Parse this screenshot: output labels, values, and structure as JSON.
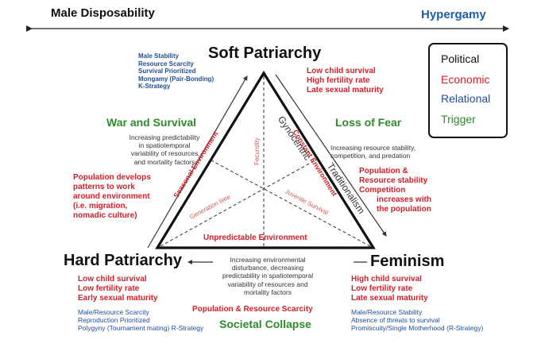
{
  "top_axis": {
    "left_label": "Male Disposability",
    "right_label": "Hypergamy"
  },
  "legend": [
    {
      "label": "Political",
      "color": "#111111"
    },
    {
      "label": "Economic",
      "color": "#d0202a"
    },
    {
      "label": "Relational",
      "color": "#1f4e96"
    },
    {
      "label": "Trigger",
      "color": "#2f8a2c"
    }
  ],
  "nodes": {
    "soft": {
      "title": "Soft Patriarchy",
      "relational": [
        "Male Stability",
        "Resource Scarcity",
        "Survival Prioritized",
        "Mongamy (Pair-Bonding)",
        "K-Strategy"
      ],
      "economic": [
        "Low child survival",
        "High fertility rate",
        "Late sexual maturity"
      ]
    },
    "hard": {
      "title": "Hard Patriarchy",
      "economic": [
        "Low child survival",
        "Low fertility rate",
        "Early sexual maturity"
      ],
      "relational": [
        "Male/Resource Scarcity",
        "Reproduction Prioritized",
        "Polygyny (Tournament mating) R-Strategy"
      ]
    },
    "feminism": {
      "title": "Feminism",
      "economic": [
        "High child survival",
        "Low fertility rate",
        "Late sexual maturity"
      ],
      "relational": [
        "Male/Resource Stability",
        "Absence of threats to survival",
        "Promiscuity/Single Motherhood (R-Strategy)"
      ]
    }
  },
  "transitions": {
    "left": {
      "trigger": "War and Survival",
      "description": [
        "Increasing predictability",
        "in spatiotemporal",
        "variability of resources",
        "and mortality factors"
      ],
      "economic": [
        "Population develops",
        "patterns to work",
        "around environment",
        "(i.e. migration,",
        "nomadic culture)"
      ]
    },
    "right": {
      "trigger": "Loss of Fear",
      "description": [
        "Increasing resource stability,",
        "competition, and predation"
      ],
      "economic": [
        "Population &",
        "Resource stability",
        "Competition",
        "increases with",
        "the population"
      ]
    },
    "bottom": {
      "trigger": "Societal Collapse",
      "description": [
        "Increasing environmental",
        "disturbance, decreasing",
        "predictability in spatiotemporal",
        "variability of resources and",
        "mortality factors"
      ],
      "economic": "Population & Resource Scarcity"
    }
  },
  "diagonal_labels": {
    "gynocentric": "Gynocentric",
    "traditionalism": "Traditionalism"
  },
  "triangle": {
    "left_edge": "Seasonal Environment",
    "right_edge": "Constant Environment",
    "bottom_edge": "Unpredictable Environment",
    "inner_top": "Fecundity",
    "inner_left": "Generation time",
    "inner_right": "Juvenile Survival"
  }
}
